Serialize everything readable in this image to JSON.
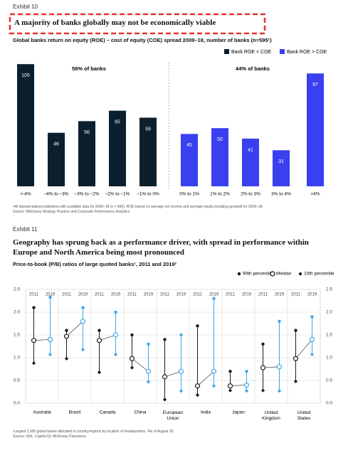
{
  "chart_data": [
    {
      "type": "bar",
      "exhibit": "Exhibit 10",
      "title": "A majority of banks globally may not be economically viable",
      "subtitle": "Global banks return on equity (ROE) – cost of equity (COE) spread 2009–18, number of banks (n=595¹)",
      "categories": [
        "<-4%",
        "–4% to –3%",
        "–3% to –2%",
        "–2% to –1%",
        "–1% to 0%",
        "0% to 1%",
        "1% to 2%",
        "2% to 3%",
        "3% to 4%",
        ">4%"
      ],
      "series": [
        {
          "name": "Bank ROE < COE",
          "color": "#0c1f2e",
          "values": [
            105,
            46,
            56,
            65,
            59,
            null,
            null,
            null,
            null,
            null
          ]
        },
        {
          "name": "Bank ROE > COE",
          "color": "#3a3ff0",
          "values": [
            null,
            null,
            null,
            null,
            null,
            45,
            50,
            41,
            31,
            97
          ]
        }
      ],
      "annotations": [
        "56% of banks",
        "44% of banks"
      ],
      "ylim": [
        0,
        110
      ],
      "footnotes": [
        "¹All deposit-taking institutions with available data for 2009–18 (n = 595). ROE based on average net income and average equity including goodwill for 2009–18.",
        "Source: McKinsey Strategy Practice and Corporate Performance Analytics"
      ]
    },
    {
      "type": "dumbbell",
      "exhibit": "Exhibit 11",
      "title": "Geography has sprung back as a performance driver, with spread in performance within Europe and North America being most pronounced",
      "subtitle": "Price-to-book (P/B) ratios of large quoted banks¹, 2011 and 2019²",
      "categories": [
        "Australia",
        "Brazil",
        "Canada",
        "China",
        "European Union",
        "India",
        "Japan",
        "United Kingdom",
        "United States"
      ],
      "years": [
        {
          "label": "2011",
          "color": "#1b1b1b"
        },
        {
          "label": "2019",
          "color": "#3ea6e8"
        }
      ],
      "series": [
        {
          "name": "90th percentile",
          "marker": "dot",
          "values": [
            [
              2.1,
              2.33
            ],
            [
              1.6,
              2.1
            ],
            [
              1.6,
              2.0
            ],
            [
              1.5,
              1.3
            ],
            [
              1.4,
              1.5
            ],
            [
              1.7,
              2.3
            ],
            [
              0.7,
              0.7
            ],
            [
              1.3,
              1.8
            ],
            [
              1.6,
              1.9
            ]
          ]
        },
        {
          "name": "Median",
          "marker": "circle",
          "values": [
            [
              1.38,
              1.4
            ],
            [
              1.47,
              1.8
            ],
            [
              1.38,
              1.5
            ],
            [
              0.98,
              0.7
            ],
            [
              0.58,
              0.7
            ],
            [
              0.38,
              0.7
            ],
            [
              0.38,
              0.4
            ],
            [
              0.78,
              0.8
            ],
            [
              0.98,
              1.4
            ]
          ]
        },
        {
          "name": "10th percentile",
          "marker": "diamond",
          "values": [
            [
              0.88,
              1.07
            ],
            [
              0.98,
              1.18
            ],
            [
              0.68,
              1.07
            ],
            [
              0.78,
              0.47
            ],
            [
              0.08,
              0.27
            ],
            [
              0.18,
              0.38
            ],
            [
              0.28,
              0.27
            ],
            [
              0.28,
              0.27
            ],
            [
              0.48,
              1.07
            ]
          ]
        }
      ],
      "ylim": [
        0,
        2.5
      ],
      "yticks": [
        {
          "value": 0,
          "label": "0.0"
        },
        0.5,
        {
          "value": 1,
          "label": "1.0"
        },
        1.5,
        {
          "value": 2,
          "label": "2.0"
        },
        2.5
      ],
      "grid": true,
      "footnotes": [
        "¹Largest 1,000 global banks allocated to country/regions by location of headquarters. ²As of August 30.",
        "Source: SNL; Capital IQ; McKinsey Panorama"
      ]
    }
  ]
}
